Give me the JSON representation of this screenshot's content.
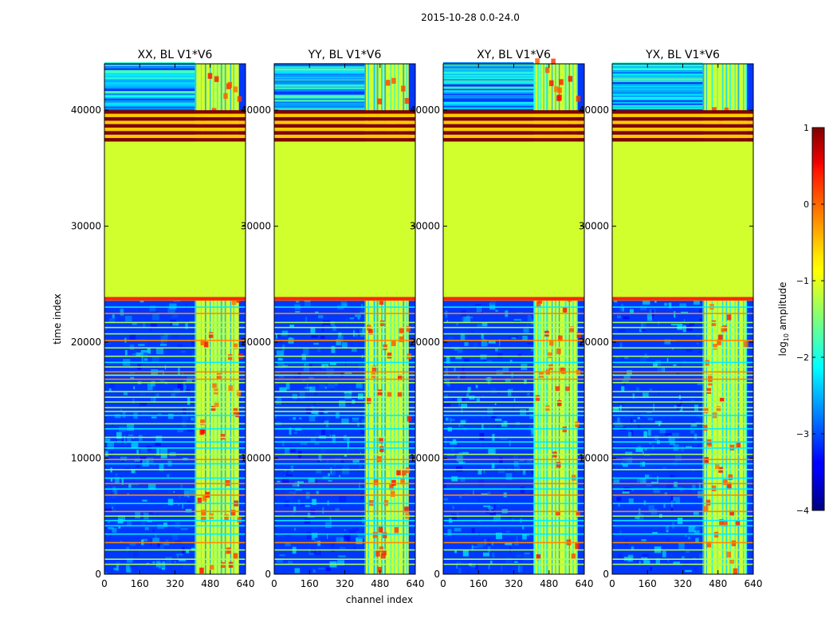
{
  "chart_data": {
    "type": "heatmap",
    "title": "2015-10-28 0.0-24.0",
    "xlabel": "channel index",
    "ylabel": "time index",
    "x_range": [
      0,
      640
    ],
    "y_range": [
      0,
      44000
    ],
    "x_ticks": [
      0,
      160,
      320,
      480,
      640
    ],
    "y_ticks": [
      0,
      10000,
      20000,
      30000,
      40000
    ],
    "panels": [
      {
        "title": "XX, BL V1*V6"
      },
      {
        "title": "YY, BL V1*V6"
      },
      {
        "title": "XY, BL V1*V6"
      },
      {
        "title": "YX, BL V1*V6"
      }
    ],
    "colorbar": {
      "label": "log10 amplitude",
      "label_main": "log",
      "label_sub": "10",
      "label_rest": " amplitude",
      "range": [
        -4,
        1
      ],
      "ticks": [
        1,
        0,
        -1,
        -2,
        -3,
        -4
      ],
      "tick_labels": [
        "1",
        "0",
        "−1",
        "−2",
        "−3",
        "−4"
      ],
      "colormap": "jet"
    },
    "structure": {
      "uniform_block_time": [
        23600,
        37300
      ],
      "uniform_block_level": -1.1,
      "flagged_stripe_band": [
        37300,
        40000
      ],
      "bright_channel_band": [
        410,
        610
      ],
      "background_level": -3.1
    }
  }
}
